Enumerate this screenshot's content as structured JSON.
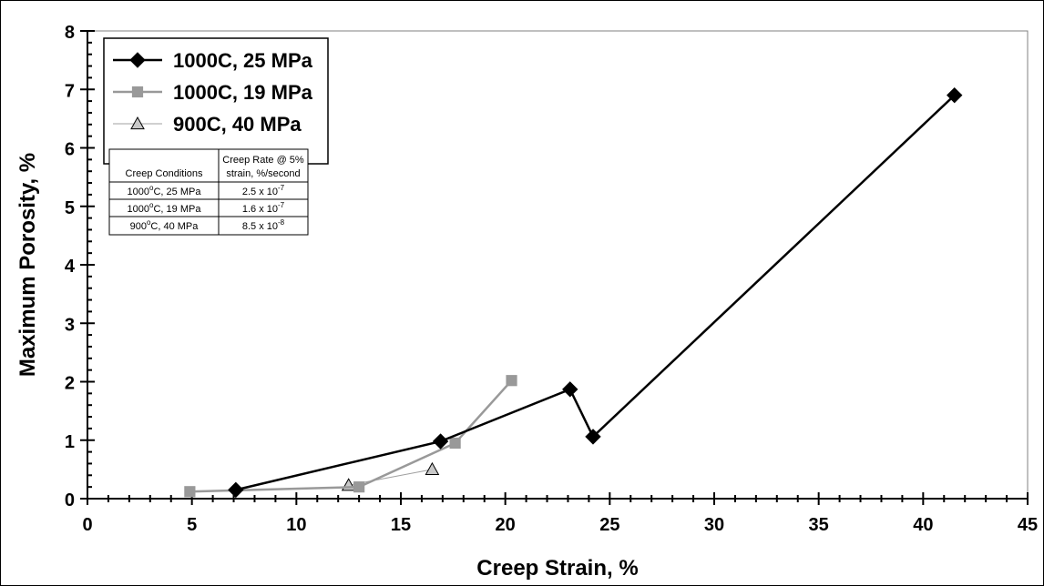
{
  "chart_data": {
    "type": "line",
    "xlabel": "Creep Strain, %",
    "ylabel": "Maximum Porosity, %",
    "xlim": [
      0,
      45
    ],
    "ylim": [
      0,
      8
    ],
    "xticks": [
      "0",
      "5",
      "10",
      "15",
      "20",
      "25",
      "30",
      "35",
      "40",
      "45"
    ],
    "yticks": [
      "0",
      "1",
      "2",
      "3",
      "4",
      "5",
      "6",
      "7",
      "8"
    ],
    "grid": false,
    "legend_position": "top-left",
    "series": [
      {
        "name": "1000C, 25 MPa",
        "color": "#000000",
        "marker": "diamond",
        "x": [
          7.1,
          16.9,
          23.1,
          24.2,
          41.5
        ],
        "y": [
          0.15,
          0.98,
          1.87,
          1.06,
          6.9
        ]
      },
      {
        "name": "1000C, 19 MPa",
        "color": "#999999",
        "marker": "square",
        "x": [
          4.9,
          13.0,
          17.6,
          20.3
        ],
        "y": [
          0.12,
          0.2,
          0.95,
          2.02
        ]
      },
      {
        "name": "900C, 40 MPa",
        "color": "#a0a0a0",
        "marker": "triangle",
        "x": [
          12.5,
          16.5
        ],
        "y": [
          0.23,
          0.5
        ]
      }
    ],
    "inset_table": {
      "headers": [
        "Creep Conditions",
        "Creep Rate @ 5% strain, %/second"
      ],
      "header_line1": "Creep Rate @ 5%",
      "header_line2": "strain, %/second",
      "rows": [
        {
          "condition_base": "1000",
          "condition_rest": "C, 25 MPa",
          "rate_base": "2.5 x 10",
          "rate_exp": "-7"
        },
        {
          "condition_base": "1000",
          "condition_rest": "C, 19 MPa",
          "rate_base": "1.6 x 10",
          "rate_exp": "-7"
        },
        {
          "condition_base": "900",
          "condition_rest": "C, 40 MPa",
          "rate_base": "8.5 x 10",
          "rate_exp": "-8"
        }
      ],
      "degree_symbol": "o"
    }
  }
}
